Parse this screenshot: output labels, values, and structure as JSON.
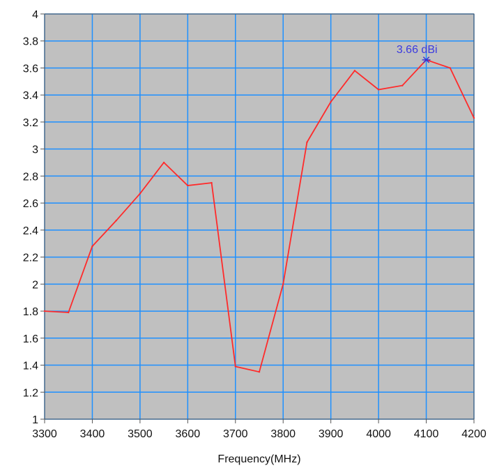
{
  "chart_data": {
    "type": "line",
    "title": "",
    "xlabel": "Frequency(MHz)",
    "ylabel": "",
    "xlim": [
      3300,
      4200
    ],
    "ylim": [
      1,
      4
    ],
    "x_ticks": [
      3300,
      3400,
      3500,
      3600,
      3700,
      3800,
      3900,
      4000,
      4100,
      4200
    ],
    "y_ticks": [
      1,
      1.2,
      1.4,
      1.6,
      1.8,
      2,
      2.2,
      2.4,
      2.6,
      2.8,
      3,
      3.2,
      3.4,
      3.6,
      3.8,
      4
    ],
    "x_tick_labels": [
      "3300",
      "3400",
      "3500",
      "3600",
      "3700",
      "3800",
      "3900",
      "4000",
      "4100",
      "4200"
    ],
    "y_tick_labels": [
      "1",
      "1.2",
      "1.4",
      "1.6",
      "1.8",
      "2",
      "2.2",
      "2.4",
      "2.6",
      "2.8",
      "3",
      "3.2",
      "3.4",
      "3.6",
      "3.8",
      "4"
    ],
    "grid": true,
    "series": [
      {
        "x": [
          3300,
          3350,
          3400,
          3450,
          3500,
          3550,
          3600,
          3650,
          3700,
          3750,
          3800,
          3850,
          3900,
          3950,
          4000,
          4050,
          4100,
          4150,
          4200
        ],
        "y": [
          1.8,
          1.79,
          2.28,
          2.47,
          2.67,
          2.9,
          2.73,
          2.75,
          1.39,
          1.35,
          2.0,
          3.05,
          3.35,
          3.58,
          3.44,
          3.47,
          3.66,
          3.6,
          3.23
        ]
      }
    ],
    "annotations": [
      {
        "x": 4100,
        "y": 3.66,
        "text": "3.66 dBi",
        "marker": "asterisk"
      }
    ],
    "colors": {
      "plot_background": "#c0c0c0",
      "chart_background": "#ffffff",
      "grid": "#1e90ff",
      "line": "#ff2a2a",
      "marker": "#3030d8",
      "annotation_text": "#3a3ae0",
      "axis": "#555555"
    }
  }
}
